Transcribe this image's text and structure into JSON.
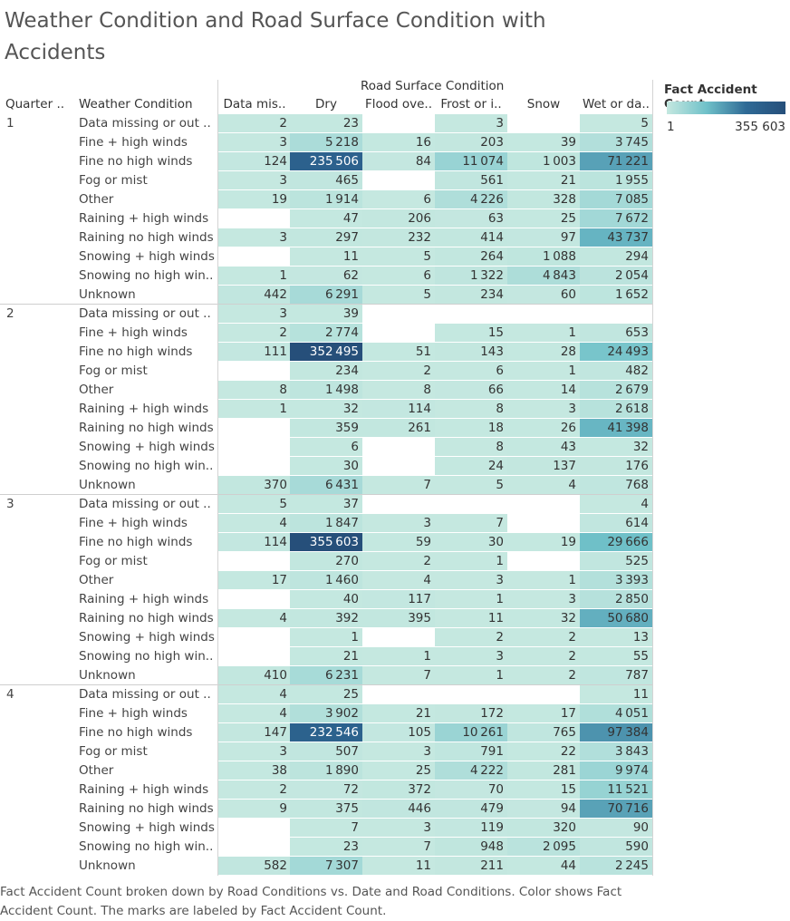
{
  "title": "Weather Condition and Road Surface Condition with Accidents",
  "caption": "Fact Accident Count broken down by Road Conditions vs. Date and Road Conditions.  Color shows Fact Accident Count.  The marks are labeled by Fact Accident Count.",
  "legend": {
    "title": "Fact Accident Count",
    "min_label": "1",
    "max_label": "355 603",
    "min": 1,
    "max": 355603
  },
  "chart_data": {
    "type": "table",
    "title": "Weather Condition and Road Surface Condition with Accidents",
    "column_group_header": "Road Surface Condition",
    "row_headers": [
      "Quarter ..",
      "Weather Condition"
    ],
    "columns": [
      "Data mis..",
      "Dry",
      "Flood ove..",
      "Frost or i..",
      "Snow",
      "Wet or da.."
    ],
    "weather_conditions": [
      "Data missing or out ..",
      "Fine + high winds",
      "Fine no high winds",
      "Fog or mist",
      "Other",
      "Raining + high winds",
      "Raining no high winds",
      "Snowing + high winds",
      "Snowing no high win..",
      "Unknown"
    ],
    "quarters": [
      {
        "quarter": "1",
        "rows": [
          [
            2,
            23,
            null,
            3,
            null,
            5
          ],
          [
            3,
            5218,
            16,
            203,
            39,
            3745
          ],
          [
            124,
            235506,
            84,
            11074,
            1003,
            71221
          ],
          [
            3,
            465,
            null,
            561,
            21,
            1955
          ],
          [
            19,
            1914,
            6,
            4226,
            328,
            7085
          ],
          [
            null,
            47,
            206,
            63,
            25,
            7672
          ],
          [
            3,
            297,
            232,
            414,
            97,
            43737
          ],
          [
            null,
            11,
            5,
            264,
            1088,
            294
          ],
          [
            1,
            62,
            6,
            1322,
            4843,
            2054
          ],
          [
            442,
            6291,
            5,
            234,
            60,
            1652
          ]
        ]
      },
      {
        "quarter": "2",
        "rows": [
          [
            3,
            39,
            null,
            null,
            null,
            null
          ],
          [
            2,
            2774,
            null,
            15,
            1,
            653
          ],
          [
            111,
            352495,
            51,
            143,
            28,
            24493
          ],
          [
            null,
            234,
            2,
            6,
            1,
            482
          ],
          [
            8,
            1498,
            8,
            66,
            14,
            2679
          ],
          [
            1,
            32,
            114,
            8,
            3,
            2618
          ],
          [
            null,
            359,
            261,
            18,
            26,
            41398
          ],
          [
            null,
            6,
            null,
            8,
            43,
            32
          ],
          [
            null,
            30,
            null,
            24,
            137,
            176
          ],
          [
            370,
            6431,
            7,
            5,
            4,
            768
          ]
        ]
      },
      {
        "quarter": "3",
        "rows": [
          [
            5,
            37,
            null,
            null,
            null,
            4
          ],
          [
            4,
            1847,
            3,
            7,
            null,
            614
          ],
          [
            114,
            355603,
            59,
            30,
            19,
            29666
          ],
          [
            null,
            270,
            2,
            1,
            null,
            525
          ],
          [
            17,
            1460,
            4,
            3,
            1,
            3393
          ],
          [
            null,
            40,
            117,
            1,
            3,
            2850
          ],
          [
            4,
            392,
            395,
            11,
            32,
            50680
          ],
          [
            null,
            1,
            null,
            2,
            2,
            13
          ],
          [
            null,
            21,
            1,
            3,
            2,
            55
          ],
          [
            410,
            6231,
            7,
            1,
            2,
            787
          ]
        ]
      },
      {
        "quarter": "4",
        "rows": [
          [
            4,
            25,
            null,
            null,
            null,
            11
          ],
          [
            4,
            3902,
            21,
            172,
            17,
            4051
          ],
          [
            147,
            232546,
            105,
            10261,
            765,
            97384
          ],
          [
            3,
            507,
            3,
            791,
            22,
            3843
          ],
          [
            38,
            1890,
            25,
            4222,
            281,
            9974
          ],
          [
            2,
            72,
            372,
            70,
            15,
            11521
          ],
          [
            9,
            375,
            446,
            479,
            94,
            70716
          ],
          [
            null,
            7,
            3,
            119,
            320,
            90
          ],
          [
            null,
            23,
            7,
            948,
            2095,
            590
          ],
          [
            582,
            7307,
            11,
            211,
            44,
            2245
          ]
        ]
      }
    ]
  }
}
